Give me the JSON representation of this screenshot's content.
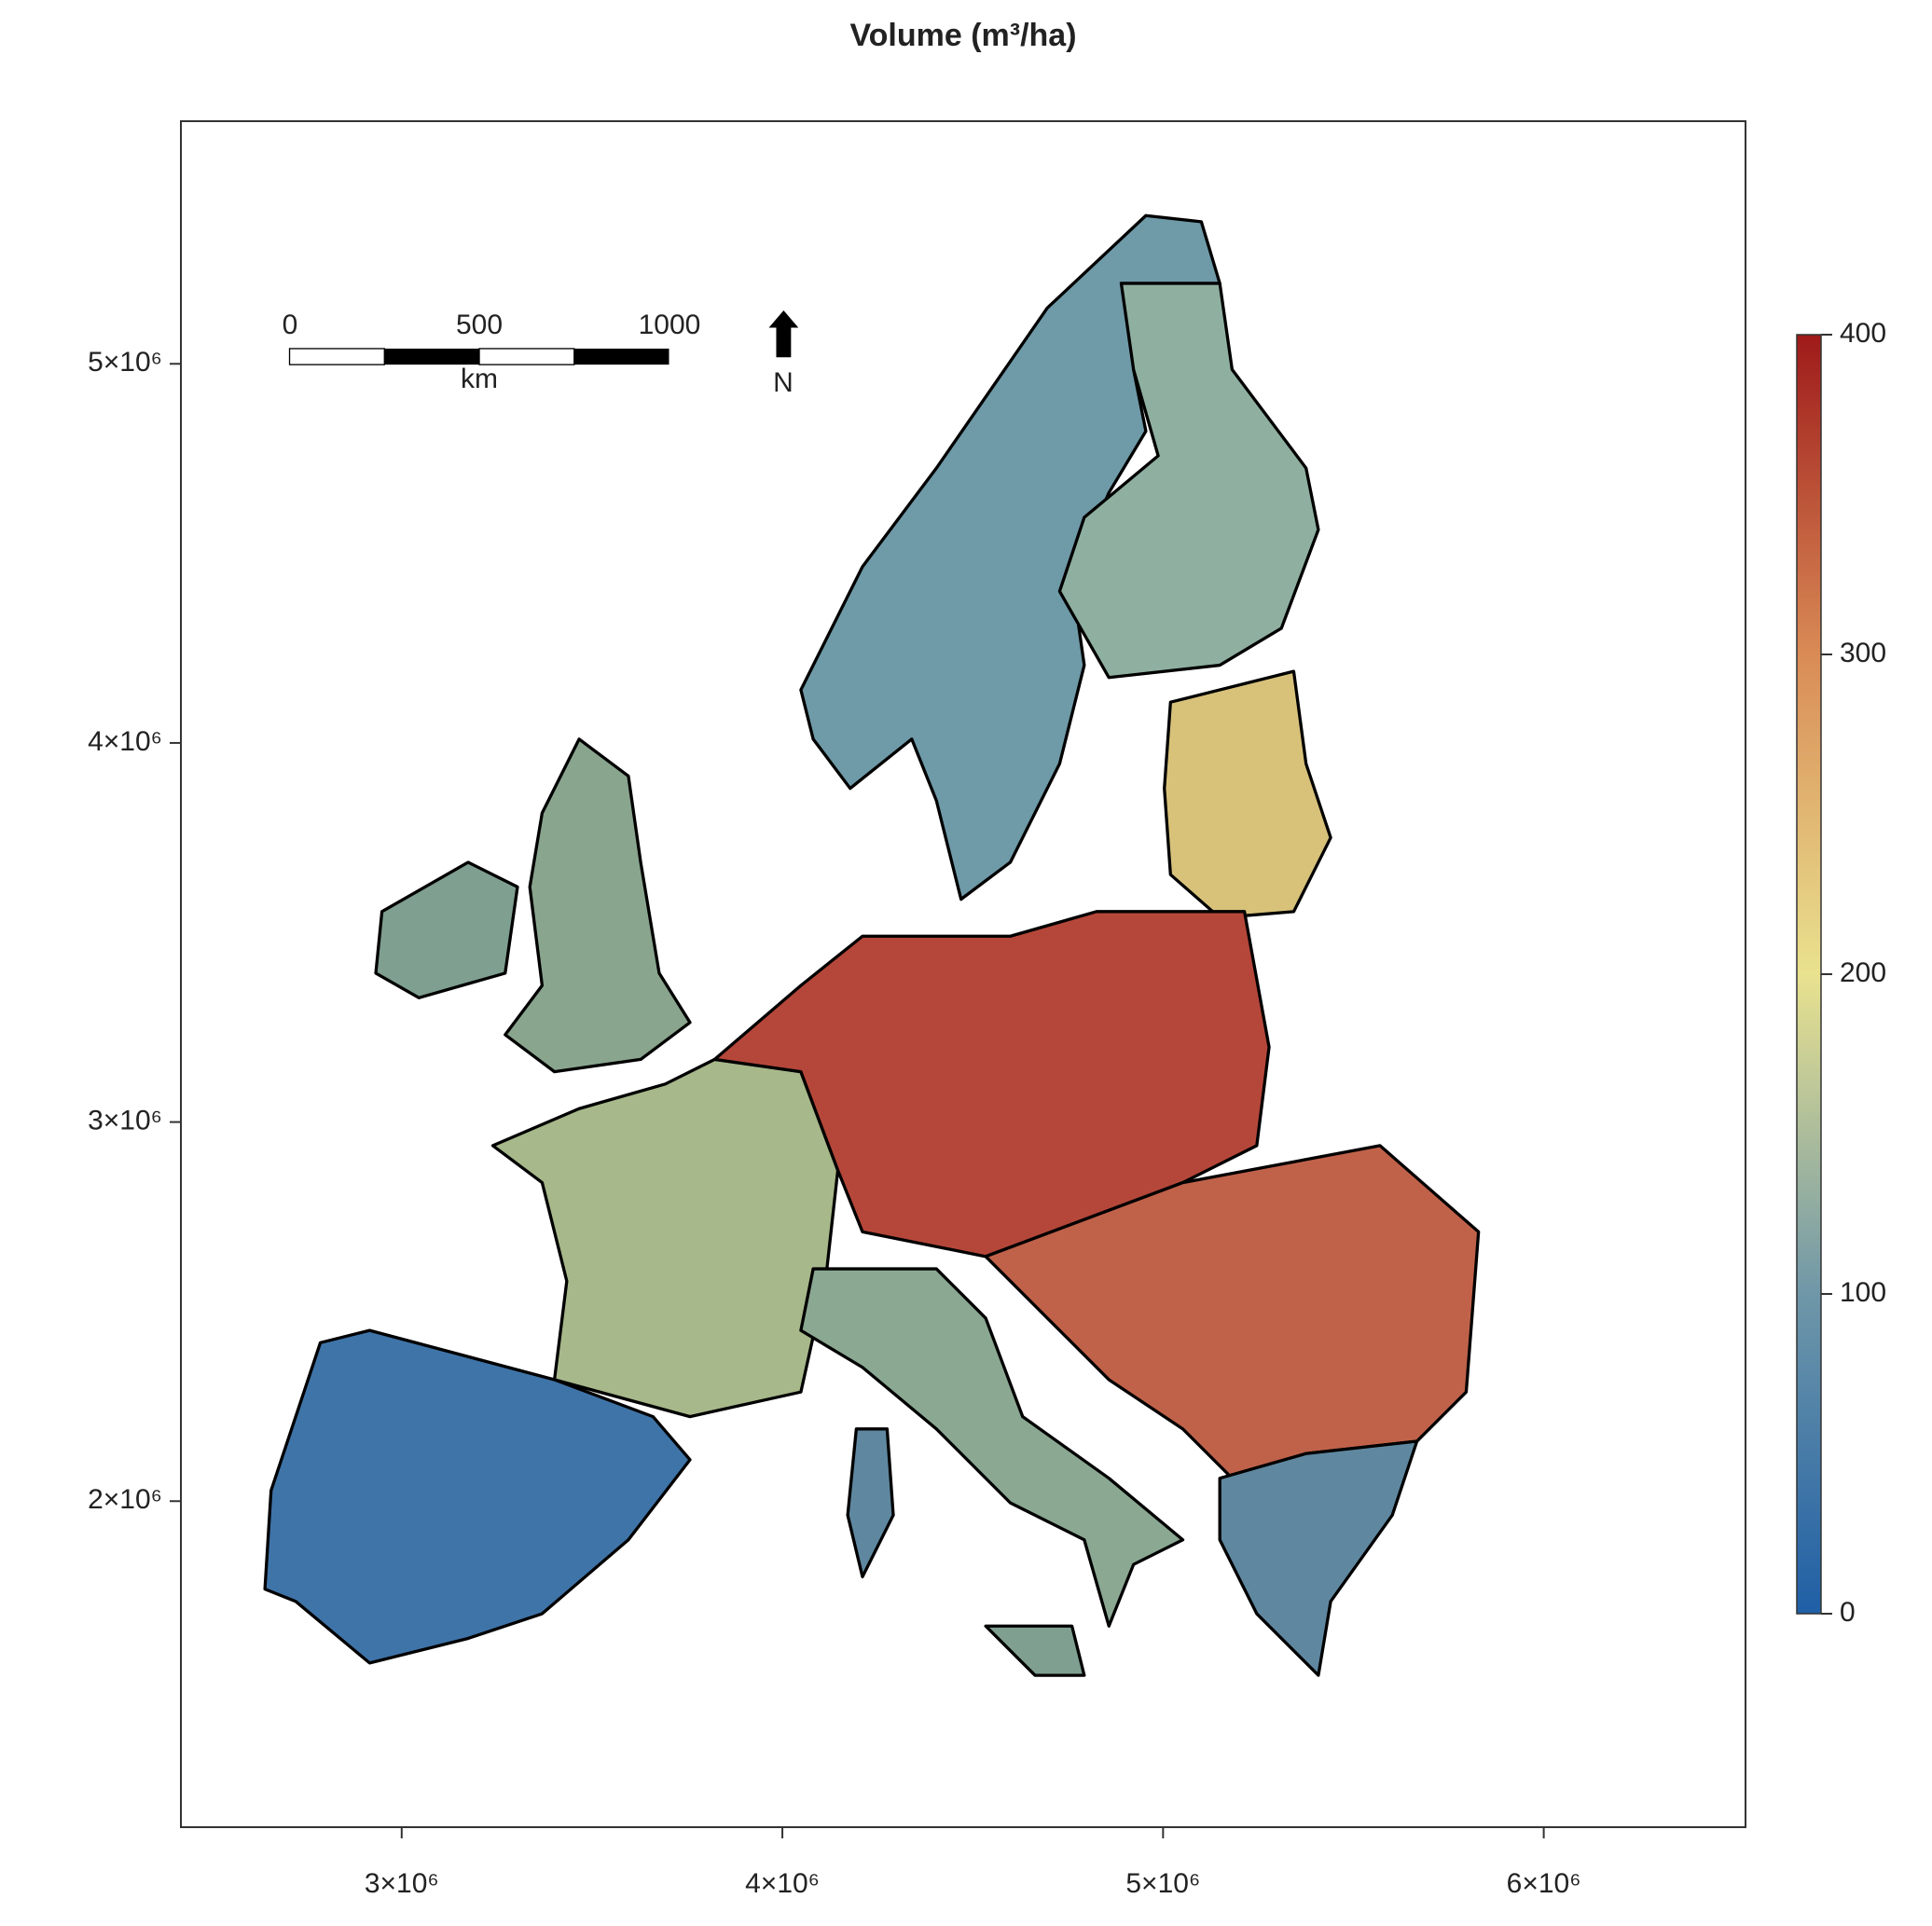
{
  "title": "Volume (m³/ha)",
  "map": {
    "xlim": [
      2420000,
      6530000
    ],
    "ylim": [
      1140000,
      5640000
    ],
    "xticks": [
      {
        "value": 3000000,
        "label": "3×10⁶"
      },
      {
        "value": 4000000,
        "label": "4×10⁶"
      },
      {
        "value": 5000000,
        "label": "5×10⁶"
      },
      {
        "value": 6000000,
        "label": "6×10⁶"
      }
    ],
    "yticks": [
      {
        "value": 2000000,
        "label": "2×10⁶"
      },
      {
        "value": 3000000,
        "label": "3×10⁶"
      },
      {
        "value": 4000000,
        "label": "4×10⁶"
      },
      {
        "value": 5000000,
        "label": "5×10⁶"
      }
    ]
  },
  "scale_bar": {
    "labels": [
      "0",
      "500",
      "1000"
    ],
    "unit": "km"
  },
  "north_arrow": "N",
  "colorbar": {
    "lim": [
      0,
      400
    ],
    "ticks": [
      0,
      100,
      200,
      300,
      400
    ],
    "colors": [
      "#1f5fa6",
      "#6f97a8",
      "#e9e28f",
      "#d98b56",
      "#9e1a1a"
    ]
  }
}
